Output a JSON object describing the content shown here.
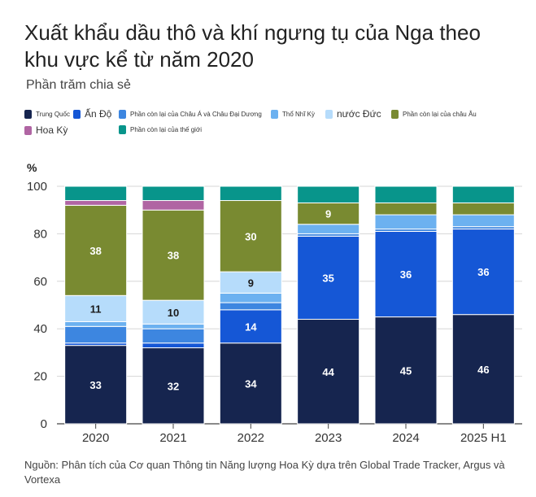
{
  "title": "Xuất khẩu dầu thô và khí ngưng tụ của Nga theo khu vực kể từ năm 2020",
  "subtitle": "Phần trăm chia sẻ",
  "source": "Nguồn: Phân tích của Cơ quan Thông tin Năng lượng Hoa Kỳ dựa trên Global Trade Tracker, Argus và Vortexa",
  "legend": [
    {
      "label": "Trung Quốc",
      "color": "#16254f",
      "size": "small"
    },
    {
      "label": "Ấn Độ",
      "color": "#1557d6",
      "size": "big"
    },
    {
      "label": "Phần còn lại của Châu Á và Châu Đại Dương",
      "color": "#3d86e0",
      "size": "small"
    },
    {
      "label": "Thổ Nhĩ Kỳ",
      "color": "#6cb1f0",
      "size": "small"
    },
    {
      "label": "nước Đức",
      "color": "#b6dcfb",
      "size": "big"
    },
    {
      "label": "Phần còn lại của châu Âu",
      "color": "#798a31",
      "size": "small"
    },
    {
      "label": "Hoa Kỳ",
      "color": "#b065a3",
      "size": "big"
    },
    {
      "label": "Phần còn lại của thế giới",
      "color": "#08958b",
      "size": "small"
    }
  ],
  "chart_data": {
    "type": "bar",
    "stacked": true,
    "title": "Xuất khẩu dầu thô và khí ngưng tụ của Nga theo khu vực kể từ năm 2020",
    "ylabel": "%",
    "ylim": [
      0,
      100
    ],
    "yticks": [
      0,
      20,
      40,
      60,
      80,
      100
    ],
    "categories": [
      "2020",
      "2021",
      "2022",
      "2023",
      "2024",
      "2025 H1"
    ],
    "series": [
      {
        "name": "Trung Quốc",
        "color": "#16254f",
        "values": [
          33,
          32,
          34,
          44,
          45,
          46
        ],
        "labels": [
          "33",
          "32",
          "34",
          "44",
          "45",
          "46"
        ]
      },
      {
        "name": "Ấn Độ",
        "color": "#1557d6",
        "values": [
          1,
          2,
          14,
          35,
          36,
          36
        ],
        "labels": [
          "",
          "",
          "14",
          "35",
          "36",
          "36"
        ]
      },
      {
        "name": "Phần còn lại của Châu Á và Châu Đại Dương",
        "color": "#3d86e0",
        "values": [
          7,
          6,
          3,
          1,
          1,
          1
        ],
        "labels": [
          "",
          "",
          "",
          "",
          "",
          ""
        ]
      },
      {
        "name": "Thổ Nhĩ Kỳ",
        "color": "#6cb1f0",
        "values": [
          2,
          2,
          4,
          4,
          6,
          5
        ],
        "labels": [
          "",
          "",
          "",
          "",
          "",
          ""
        ]
      },
      {
        "name": "nước Đức",
        "color": "#b6dcfb",
        "values": [
          11,
          10,
          9,
          0,
          0,
          0
        ],
        "labels": [
          "11",
          "10",
          "9",
          "",
          "",
          ""
        ]
      },
      {
        "name": "Phần còn lại của châu Âu",
        "color": "#798a31",
        "values": [
          38,
          38,
          30,
          9,
          5,
          5
        ],
        "labels": [
          "38",
          "38",
          "30",
          "9",
          "",
          ""
        ]
      },
      {
        "name": "Hoa Kỳ",
        "color": "#b065a3",
        "values": [
          2,
          4,
          0,
          0,
          0,
          0
        ],
        "labels": [
          "",
          "",
          "",
          "",
          "",
          ""
        ]
      },
      {
        "name": "Phần còn lại của thế giới",
        "color": "#08958b",
        "values": [
          6,
          6,
          6,
          7,
          7,
          7
        ],
        "labels": [
          "",
          "",
          "",
          "",
          "",
          ""
        ]
      }
    ]
  }
}
